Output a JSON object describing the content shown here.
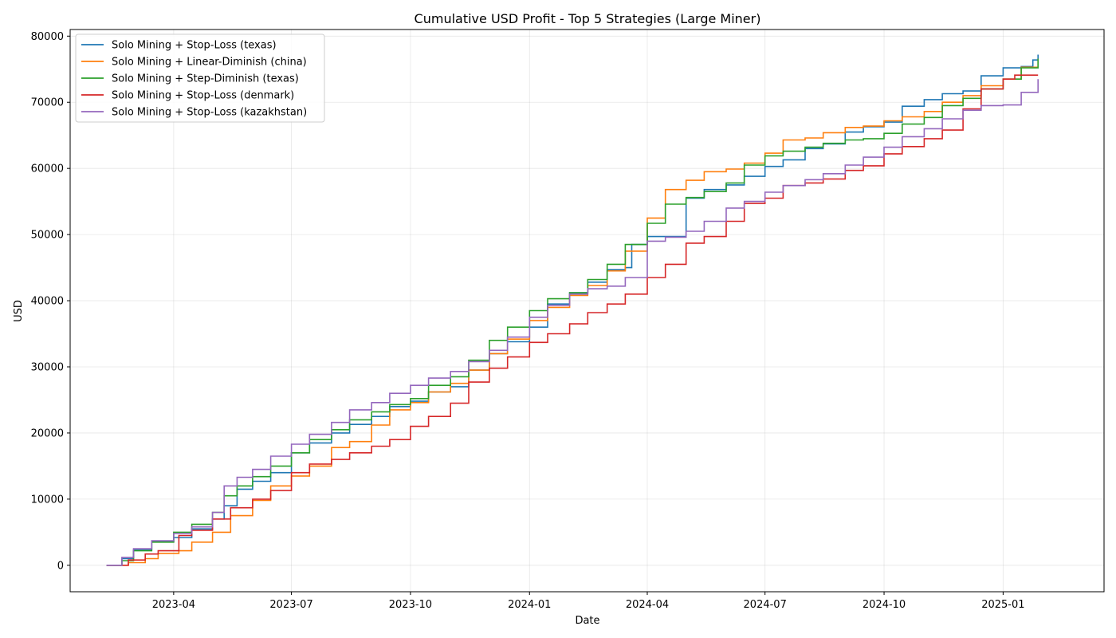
{
  "chart_data": {
    "type": "line",
    "title": "Cumulative USD Profit - Top 5 Strategies (Large Miner)",
    "xlabel": "Date",
    "ylabel": "USD",
    "xlim": [
      "2023-01-11",
      "2025-03-20"
    ],
    "ylim": [
      -4000,
      81000
    ],
    "x_ticks": [
      "2023-04-01",
      "2023-07-01",
      "2023-10-01",
      "2024-01-01",
      "2024-04-01",
      "2024-07-01",
      "2024-10-01",
      "2025-01-01"
    ],
    "x_tick_labels": [
      "2023-04",
      "2023-07",
      "2023-10",
      "2024-01",
      "2024-04",
      "2024-07",
      "2024-10",
      "2025-01"
    ],
    "y_ticks": [
      0,
      10000,
      20000,
      30000,
      40000,
      50000,
      60000,
      70000,
      80000
    ],
    "y_tick_labels": [
      "0",
      "10000",
      "20000",
      "30000",
      "40000",
      "50000",
      "60000",
      "70000",
      "80000"
    ],
    "grid": true,
    "legend_position": "top-left",
    "line_style": "step",
    "series": [
      {
        "name": "Solo Mining + Stop-Loss (texas)",
        "color": "#1f77b4",
        "points": [
          [
            "2023-02-08",
            0
          ],
          [
            "2023-02-20",
            1000
          ],
          [
            "2023-03-01",
            2300
          ],
          [
            "2023-03-15",
            3600
          ],
          [
            "2023-04-01",
            4200
          ],
          [
            "2023-04-15",
            5500
          ],
          [
            "2023-05-01",
            7000
          ],
          [
            "2023-05-10",
            9000
          ],
          [
            "2023-05-20",
            11500
          ],
          [
            "2023-06-01",
            12700
          ],
          [
            "2023-06-15",
            14000
          ],
          [
            "2023-07-01",
            17000
          ],
          [
            "2023-07-15",
            18500
          ],
          [
            "2023-08-01",
            20000
          ],
          [
            "2023-08-15",
            21300
          ],
          [
            "2023-09-01",
            22500
          ],
          [
            "2023-09-15",
            24000
          ],
          [
            "2023-10-01",
            24800
          ],
          [
            "2023-10-15",
            26200
          ],
          [
            "2023-11-01",
            27000
          ],
          [
            "2023-11-15",
            29500
          ],
          [
            "2023-12-01",
            32000
          ],
          [
            "2023-12-15",
            33800
          ],
          [
            "2024-01-01",
            36000
          ],
          [
            "2024-01-15",
            39500
          ],
          [
            "2024-02-01",
            41200
          ],
          [
            "2024-02-15",
            42800
          ],
          [
            "2024-03-01",
            44700
          ],
          [
            "2024-03-15",
            45000
          ],
          [
            "2024-03-20",
            48500
          ],
          [
            "2024-04-01",
            49700
          ],
          [
            "2024-04-20",
            49700
          ],
          [
            "2024-05-01",
            55500
          ],
          [
            "2024-05-15",
            56800
          ],
          [
            "2024-06-01",
            57500
          ],
          [
            "2024-06-15",
            58800
          ],
          [
            "2024-07-01",
            60300
          ],
          [
            "2024-07-15",
            61300
          ],
          [
            "2024-08-01",
            63000
          ],
          [
            "2024-08-15",
            63700
          ],
          [
            "2024-09-01",
            65500
          ],
          [
            "2024-09-15",
            66300
          ],
          [
            "2024-10-01",
            67000
          ],
          [
            "2024-10-15",
            69400
          ],
          [
            "2024-11-01",
            70400
          ],
          [
            "2024-11-15",
            71300
          ],
          [
            "2024-12-01",
            71700
          ],
          [
            "2024-12-15",
            74000
          ],
          [
            "2025-01-01",
            75200
          ],
          [
            "2025-01-15",
            75400
          ],
          [
            "2025-01-24",
            76400
          ],
          [
            "2025-01-28",
            77200
          ]
        ]
      },
      {
        "name": "Solo Mining + Linear-Diminish (china)",
        "color": "#ff7f0e",
        "points": [
          [
            "2023-02-08",
            0
          ],
          [
            "2023-02-25",
            400
          ],
          [
            "2023-03-10",
            1000
          ],
          [
            "2023-03-20",
            1800
          ],
          [
            "2023-04-05",
            2200
          ],
          [
            "2023-04-15",
            3500
          ],
          [
            "2023-05-01",
            5000
          ],
          [
            "2023-05-15",
            7500
          ],
          [
            "2023-06-01",
            9800
          ],
          [
            "2023-06-15",
            12000
          ],
          [
            "2023-07-01",
            13500
          ],
          [
            "2023-07-15",
            15000
          ],
          [
            "2023-08-01",
            17800
          ],
          [
            "2023-08-15",
            18700
          ],
          [
            "2023-09-01",
            21200
          ],
          [
            "2023-09-15",
            23500
          ],
          [
            "2023-10-01",
            24600
          ],
          [
            "2023-10-15",
            26200
          ],
          [
            "2023-11-01",
            27500
          ],
          [
            "2023-11-15",
            29500
          ],
          [
            "2023-12-01",
            32000
          ],
          [
            "2023-12-15",
            34200
          ],
          [
            "2024-01-01",
            37000
          ],
          [
            "2024-01-15",
            39000
          ],
          [
            "2024-02-01",
            40800
          ],
          [
            "2024-02-15",
            42300
          ],
          [
            "2024-03-01",
            44500
          ],
          [
            "2024-03-15",
            47500
          ],
          [
            "2024-04-01",
            52500
          ],
          [
            "2024-04-15",
            56800
          ],
          [
            "2024-05-01",
            58200
          ],
          [
            "2024-05-15",
            59500
          ],
          [
            "2024-06-01",
            59900
          ],
          [
            "2024-06-15",
            60800
          ],
          [
            "2024-07-01",
            62300
          ],
          [
            "2024-07-15",
            64300
          ],
          [
            "2024-08-01",
            64600
          ],
          [
            "2024-08-15",
            65400
          ],
          [
            "2024-09-01",
            66200
          ],
          [
            "2024-09-15",
            66400
          ],
          [
            "2024-10-01",
            67200
          ],
          [
            "2024-10-15",
            67800
          ],
          [
            "2024-11-01",
            68600
          ],
          [
            "2024-11-15",
            70000
          ],
          [
            "2024-12-01",
            71000
          ],
          [
            "2024-12-15",
            72500
          ],
          [
            "2025-01-01",
            73500
          ],
          [
            "2025-01-15",
            75300
          ],
          [
            "2025-01-28",
            76500
          ]
        ]
      },
      {
        "name": "Solo Mining + Step-Diminish (texas)",
        "color": "#2ca02c",
        "points": [
          [
            "2023-02-08",
            0
          ],
          [
            "2023-02-20",
            700
          ],
          [
            "2023-03-01",
            2200
          ],
          [
            "2023-03-15",
            3500
          ],
          [
            "2023-04-01",
            5000
          ],
          [
            "2023-04-15",
            6200
          ],
          [
            "2023-05-01",
            8000
          ],
          [
            "2023-05-10",
            10500
          ],
          [
            "2023-05-20",
            12000
          ],
          [
            "2023-06-01",
            13400
          ],
          [
            "2023-06-15",
            15000
          ],
          [
            "2023-07-01",
            17000
          ],
          [
            "2023-07-15",
            19000
          ],
          [
            "2023-08-01",
            20500
          ],
          [
            "2023-08-15",
            22000
          ],
          [
            "2023-09-01",
            23200
          ],
          [
            "2023-09-15",
            24300
          ],
          [
            "2023-10-01",
            25200
          ],
          [
            "2023-10-15",
            27200
          ],
          [
            "2023-11-01",
            28500
          ],
          [
            "2023-11-15",
            31000
          ],
          [
            "2023-12-01",
            34000
          ],
          [
            "2023-12-15",
            36000
          ],
          [
            "2024-01-01",
            38500
          ],
          [
            "2024-01-15",
            40300
          ],
          [
            "2024-02-01",
            41200
          ],
          [
            "2024-02-15",
            43200
          ],
          [
            "2024-03-01",
            45500
          ],
          [
            "2024-03-15",
            48500
          ],
          [
            "2024-04-01",
            51700
          ],
          [
            "2024-04-15",
            54600
          ],
          [
            "2024-05-01",
            55600
          ],
          [
            "2024-05-15",
            56500
          ],
          [
            "2024-06-01",
            57800
          ],
          [
            "2024-06-15",
            60500
          ],
          [
            "2024-07-01",
            61900
          ],
          [
            "2024-07-15",
            62600
          ],
          [
            "2024-08-01",
            63200
          ],
          [
            "2024-08-15",
            63800
          ],
          [
            "2024-09-01",
            64300
          ],
          [
            "2024-09-15",
            64500
          ],
          [
            "2024-10-01",
            65300
          ],
          [
            "2024-10-15",
            66700
          ],
          [
            "2024-11-01",
            67700
          ],
          [
            "2024-11-15",
            69500
          ],
          [
            "2024-12-01",
            70600
          ],
          [
            "2024-12-15",
            72000
          ],
          [
            "2025-01-01",
            73500
          ],
          [
            "2025-01-15",
            75200
          ],
          [
            "2025-01-28",
            76600
          ]
        ]
      },
      {
        "name": "Solo Mining + Stop-Loss (denmark)",
        "color": "#d62728",
        "points": [
          [
            "2023-02-08",
            0
          ],
          [
            "2023-02-25",
            800
          ],
          [
            "2023-03-10",
            1700
          ],
          [
            "2023-03-20",
            2200
          ],
          [
            "2023-04-05",
            4500
          ],
          [
            "2023-04-15",
            5300
          ],
          [
            "2023-05-01",
            7000
          ],
          [
            "2023-05-15",
            8700
          ],
          [
            "2023-06-01",
            10000
          ],
          [
            "2023-06-15",
            11300
          ],
          [
            "2023-07-01",
            14000
          ],
          [
            "2023-07-15",
            15300
          ],
          [
            "2023-08-01",
            16000
          ],
          [
            "2023-08-15",
            17000
          ],
          [
            "2023-09-01",
            18000
          ],
          [
            "2023-09-15",
            19000
          ],
          [
            "2023-10-01",
            21000
          ],
          [
            "2023-10-15",
            22500
          ],
          [
            "2023-11-01",
            24500
          ],
          [
            "2023-11-15",
            27700
          ],
          [
            "2023-12-01",
            29800
          ],
          [
            "2023-12-15",
            31500
          ],
          [
            "2024-01-01",
            33700
          ],
          [
            "2024-01-15",
            35000
          ],
          [
            "2024-02-01",
            36500
          ],
          [
            "2024-02-15",
            38200
          ],
          [
            "2024-03-01",
            39500
          ],
          [
            "2024-03-15",
            41000
          ],
          [
            "2024-04-01",
            43500
          ],
          [
            "2024-04-15",
            45500
          ],
          [
            "2024-05-01",
            48700
          ],
          [
            "2024-05-15",
            49700
          ],
          [
            "2024-06-01",
            52000
          ],
          [
            "2024-06-15",
            54700
          ],
          [
            "2024-07-01",
            55500
          ],
          [
            "2024-07-15",
            57400
          ],
          [
            "2024-08-01",
            57800
          ],
          [
            "2024-08-15",
            58400
          ],
          [
            "2024-09-01",
            59700
          ],
          [
            "2024-09-15",
            60400
          ],
          [
            "2024-10-01",
            62200
          ],
          [
            "2024-10-15",
            63300
          ],
          [
            "2024-11-01",
            64500
          ],
          [
            "2024-11-15",
            65800
          ],
          [
            "2024-12-01",
            69000
          ],
          [
            "2024-12-15",
            72000
          ],
          [
            "2025-01-01",
            73500
          ],
          [
            "2025-01-10",
            74100
          ],
          [
            "2025-01-28",
            74100
          ]
        ]
      },
      {
        "name": "Solo Mining + Stop-Loss (kazakhstan)",
        "color": "#9467bd",
        "points": [
          [
            "2023-02-08",
            0
          ],
          [
            "2023-02-20",
            1200
          ],
          [
            "2023-03-01",
            2500
          ],
          [
            "2023-03-15",
            3700
          ],
          [
            "2023-04-01",
            4800
          ],
          [
            "2023-04-15",
            5800
          ],
          [
            "2023-05-01",
            8000
          ],
          [
            "2023-05-10",
            12000
          ],
          [
            "2023-05-20",
            13300
          ],
          [
            "2023-06-01",
            14500
          ],
          [
            "2023-06-15",
            16500
          ],
          [
            "2023-07-01",
            18300
          ],
          [
            "2023-07-15",
            19800
          ],
          [
            "2023-08-01",
            21600
          ],
          [
            "2023-08-15",
            23500
          ],
          [
            "2023-09-01",
            24600
          ],
          [
            "2023-09-15",
            26000
          ],
          [
            "2023-10-01",
            27200
          ],
          [
            "2023-10-15",
            28300
          ],
          [
            "2023-11-01",
            29300
          ],
          [
            "2023-11-15",
            30800
          ],
          [
            "2023-12-01",
            32500
          ],
          [
            "2023-12-15",
            34500
          ],
          [
            "2024-01-01",
            37500
          ],
          [
            "2024-01-15",
            39300
          ],
          [
            "2024-02-01",
            41000
          ],
          [
            "2024-02-15",
            41800
          ],
          [
            "2024-03-01",
            42200
          ],
          [
            "2024-03-15",
            43500
          ],
          [
            "2024-04-01",
            49000
          ],
          [
            "2024-04-15",
            49600
          ],
          [
            "2024-05-01",
            50500
          ],
          [
            "2024-05-15",
            52000
          ],
          [
            "2024-06-01",
            54000
          ],
          [
            "2024-06-15",
            55000
          ],
          [
            "2024-07-01",
            56400
          ],
          [
            "2024-07-15",
            57400
          ],
          [
            "2024-08-01",
            58300
          ],
          [
            "2024-08-15",
            59200
          ],
          [
            "2024-09-01",
            60500
          ],
          [
            "2024-09-15",
            61700
          ],
          [
            "2024-10-01",
            63200
          ],
          [
            "2024-10-15",
            64800
          ],
          [
            "2024-11-01",
            66000
          ],
          [
            "2024-11-15",
            67500
          ],
          [
            "2024-12-01",
            68800
          ],
          [
            "2024-12-15",
            69500
          ],
          [
            "2025-01-01",
            69600
          ],
          [
            "2025-01-15",
            71500
          ],
          [
            "2025-01-28",
            73500
          ]
        ]
      }
    ]
  }
}
